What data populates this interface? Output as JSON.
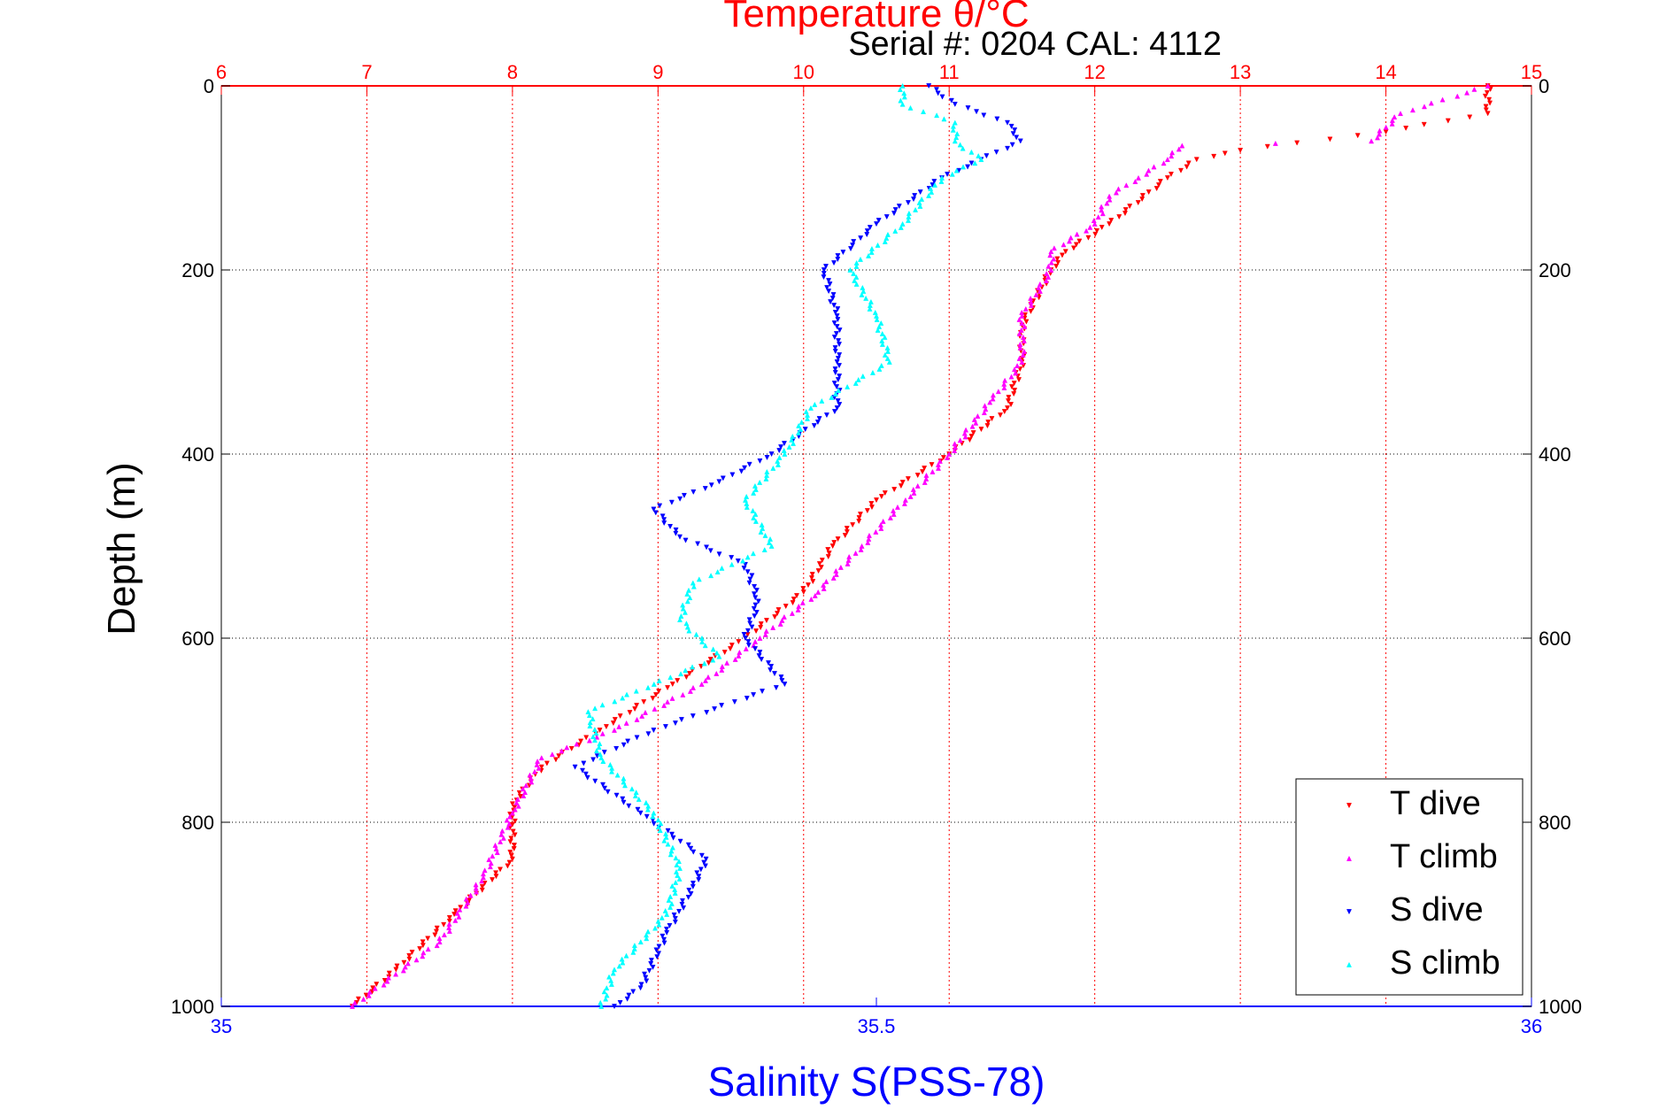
{
  "chart_data": {
    "type": "scatter",
    "title": "Temperature θ/°C",
    "annotation": "Serial #: 0204  CAL: 4112",
    "xlabel": "Salinity S(PSS-78)",
    "ylabel": "Depth (m)",
    "xlim_temperature": [
      6,
      15
    ],
    "xticks_temperature": [
      "6",
      "7",
      "8",
      "9",
      "10",
      "11",
      "12",
      "13",
      "14",
      "15"
    ],
    "xlim_salinity": [
      35,
      36
    ],
    "xticks_salinity": [
      "35",
      "35.5",
      "36"
    ],
    "ylim": [
      0,
      1000
    ],
    "yticks": [
      "0",
      "200",
      "400",
      "600",
      "800",
      "1000"
    ],
    "grid": true,
    "legend_position": "bottom-right",
    "axis_colors": {
      "temperature": "#ff0000",
      "salinity": "#0000ff",
      "depth": "#000000"
    },
    "series": [
      {
        "name": "T dive",
        "axis": "temperature",
        "color": "#ff0000",
        "marker": "down-triangle",
        "depth": [
          0,
          30,
          50,
          70,
          80,
          100,
          150,
          180,
          200,
          260,
          300,
          350,
          400,
          450,
          500,
          550,
          600,
          650,
          700,
          740,
          780,
          840,
          900,
          960,
          1000
        ],
        "values": [
          14.7,
          14.7,
          14.0,
          13.0,
          12.7,
          12.5,
          12.1,
          11.8,
          11.7,
          11.5,
          11.5,
          11.4,
          11.0,
          10.5,
          10.2,
          10.0,
          9.6,
          9.1,
          8.6,
          8.2,
          8.0,
          8.0,
          7.6,
          7.2,
          6.9
        ]
      },
      {
        "name": "T climb",
        "axis": "temperature",
        "color": "#ff00ff",
        "marker": "up-triangle",
        "depth": [
          0,
          30,
          60,
          65,
          80,
          100,
          120,
          150,
          180,
          200,
          250,
          300,
          340,
          400,
          450,
          500,
          550,
          600,
          650,
          700,
          730,
          790,
          860,
          930,
          1000
        ],
        "values": [
          14.7,
          14.1,
          13.9,
          12.6,
          12.5,
          12.3,
          12.1,
          12.0,
          11.7,
          11.7,
          11.5,
          11.5,
          11.3,
          11.0,
          10.7,
          10.4,
          10.1,
          9.7,
          9.3,
          8.7,
          8.2,
          8.0,
          7.8,
          7.5,
          6.9
        ]
      },
      {
        "name": "S dive",
        "axis": "salinity",
        "color": "#0000ff",
        "marker": "down-triangle",
        "depth": [
          0,
          20,
          40,
          60,
          80,
          100,
          150,
          200,
          250,
          300,
          350,
          400,
          430,
          460,
          490,
          520,
          560,
          600,
          650,
          700,
          740,
          790,
          840,
          870,
          920,
          980,
          1000
        ],
        "values": [
          35.54,
          35.56,
          35.6,
          35.61,
          35.58,
          35.55,
          35.5,
          35.46,
          35.47,
          35.47,
          35.47,
          35.42,
          35.38,
          35.33,
          35.35,
          35.4,
          35.41,
          35.4,
          35.43,
          35.33,
          35.27,
          35.32,
          35.37,
          35.36,
          35.34,
          35.32,
          35.3
        ]
      },
      {
        "name": "S climb",
        "axis": "salinity",
        "color": "#00ffff",
        "marker": "up-triangle",
        "depth": [
          0,
          20,
          40,
          60,
          80,
          100,
          150,
          200,
          250,
          300,
          350,
          400,
          450,
          500,
          540,
          580,
          620,
          680,
          730,
          790,
          850,
          900,
          960,
          1000
        ],
        "values": [
          35.52,
          35.52,
          35.56,
          35.56,
          35.58,
          35.55,
          35.52,
          35.48,
          35.5,
          35.51,
          35.45,
          35.43,
          35.4,
          35.42,
          35.36,
          35.35,
          35.38,
          35.28,
          35.29,
          35.33,
          35.35,
          35.34,
          35.3,
          35.29
        ]
      }
    ]
  }
}
